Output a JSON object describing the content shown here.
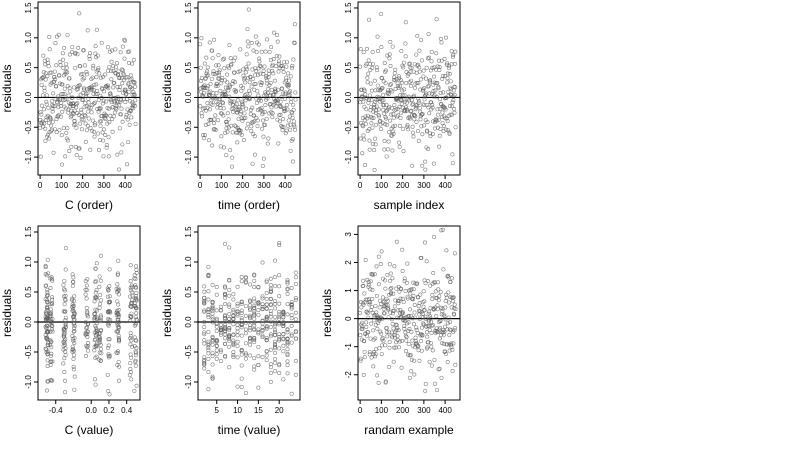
{
  "chart_data": [
    {
      "type": "scatter",
      "xlabel": "C (order)",
      "ylabel": "residuals",
      "xlim": [
        -10,
        470
      ],
      "ylim": [
        -1.3,
        1.6
      ],
      "xticks": [
        0,
        100,
        200,
        300,
        400
      ],
      "yticks": [
        -1.0,
        -0.5,
        0.0,
        0.5,
        1.0,
        1.5
      ],
      "ytick_labels": [
        "-1.0",
        "-0.5",
        "0.0",
        "0.5",
        "1.0",
        "1.5"
      ],
      "hline": 0,
      "n_points": 450,
      "x_pattern": "uniform",
      "y_spread": 0.45,
      "seed": 11
    },
    {
      "type": "scatter",
      "xlabel": "time (order)",
      "ylabel": "residuals",
      "xlim": [
        -10,
        470
      ],
      "ylim": [
        -1.3,
        1.6
      ],
      "xticks": [
        0,
        100,
        200,
        300,
        400
      ],
      "yticks": [
        -1.0,
        -0.5,
        0.0,
        0.5,
        1.0,
        1.5
      ],
      "ytick_labels": [
        "-1.0",
        "-0.5",
        "0.0",
        "0.5",
        "1.0",
        "1.5"
      ],
      "hline": 0,
      "n_points": 450,
      "x_pattern": "uniform",
      "y_spread": 0.45,
      "seed": 23
    },
    {
      "type": "scatter",
      "xlabel": "sample index",
      "ylabel": "residuals",
      "xlim": [
        -10,
        470
      ],
      "ylim": [
        -1.3,
        1.6
      ],
      "xticks": [
        0,
        100,
        200,
        300,
        400
      ],
      "yticks": [
        -1.0,
        -0.5,
        0.0,
        0.5,
        1.0,
        1.5
      ],
      "ytick_labels": [
        "-1.0",
        "-0.5",
        "0.0",
        "0.5",
        "1.0",
        "1.5"
      ],
      "hline": 0,
      "n_points": 450,
      "x_pattern": "uniform",
      "y_spread": 0.45,
      "seed": 37
    },
    {
      "type": "scatter",
      "xlabel": "C (value)",
      "ylabel": "residuals",
      "xlim": [
        -0.6,
        0.55
      ],
      "ylim": [
        -1.3,
        1.6
      ],
      "xticks": [
        -0.4,
        0.0,
        0.2,
        0.4
      ],
      "xtick_labels": [
        "-0.4",
        "0.0",
        "0.2",
        "0.4"
      ],
      "yticks": [
        -1.0,
        -0.5,
        0.0,
        0.5,
        1.0,
        1.5
      ],
      "ytick_labels": [
        "-1.0",
        "-0.5",
        "0.0",
        "0.5",
        "1.0",
        "1.5"
      ],
      "hline": 0,
      "n_points": 450,
      "x_pattern": "clustered",
      "x_clusters": [
        -0.5,
        -0.45,
        -0.3,
        -0.2,
        -0.05,
        0.05,
        0.1,
        0.2,
        0.3,
        0.45,
        0.5
      ],
      "y_spread": 0.45,
      "seed": 53
    },
    {
      "type": "scatter",
      "xlabel": "time (value)",
      "ylabel": "residuals",
      "xlim": [
        0.5,
        25
      ],
      "ylim": [
        -1.3,
        1.6
      ],
      "xticks": [
        5,
        10,
        15,
        20
      ],
      "yticks": [
        -1.0,
        -0.5,
        0.0,
        0.5,
        1.0,
        1.5
      ],
      "ytick_labels": [
        "-1.0",
        "-0.5",
        "0.0",
        "0.5",
        "1.0",
        "1.5"
      ],
      "hline": 0,
      "n_points": 450,
      "x_pattern": "integer",
      "x_range": [
        2,
        24
      ],
      "y_spread": 0.45,
      "seed": 71
    },
    {
      "type": "scatter",
      "xlabel": "randam example",
      "ylabel": "residuals",
      "xlim": [
        -10,
        470
      ],
      "ylim": [
        -2.9,
        3.3
      ],
      "xticks": [
        0,
        100,
        200,
        300,
        400
      ],
      "yticks": [
        -2,
        -1,
        0,
        1,
        2,
        3
      ],
      "hline": 0,
      "n_points": 450,
      "x_pattern": "uniform",
      "y_spread": 1.0,
      "seed": 97
    }
  ]
}
